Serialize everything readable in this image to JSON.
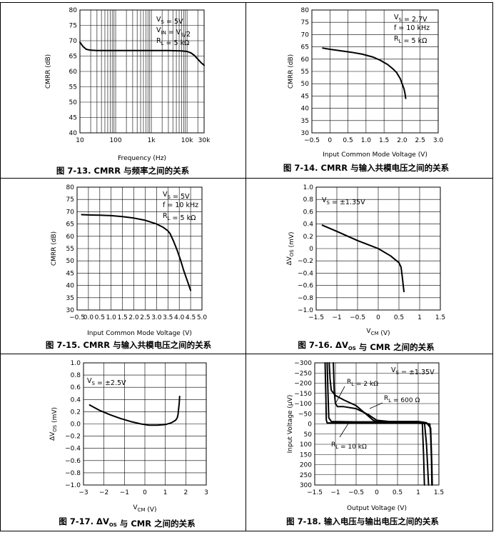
{
  "chart_data": [
    {
      "type": "line",
      "title": "图 7-13. CMRR 与频率之间的关系",
      "xlabel": "Frequency (Hz)",
      "ylabel": "CMRR (dB)",
      "xscale": "log",
      "xlim": [
        10,
        30000
      ],
      "ylim": [
        40,
        80
      ],
      "xticks": [
        10,
        100,
        1000,
        10000,
        30000
      ],
      "xtick_labels": [
        "10",
        "100",
        "1k",
        "10k",
        "30k"
      ],
      "yticks": [
        40,
        45,
        50,
        55,
        60,
        65,
        70,
        75,
        80
      ],
      "ytick_labels": [
        "40",
        "45",
        "50",
        "55",
        "60",
        "65",
        "70",
        "75",
        "80"
      ],
      "legend": [
        "V_S = 5V",
        "V_IN = V_S/2",
        "R_L = 5 kΩ"
      ],
      "legend_position": "top-right",
      "series": [
        {
          "name": "CMRR",
          "x": [
            10,
            12,
            15,
            20,
            30,
            50,
            100,
            300,
            1000,
            3000,
            7000,
            10000,
            13000,
            16000,
            20000,
            25000,
            30000
          ],
          "y": [
            69.5,
            68.2,
            67.2,
            66.9,
            66.8,
            66.8,
            66.8,
            66.8,
            66.8,
            66.8,
            66.7,
            66.5,
            66.0,
            65.2,
            64.0,
            62.8,
            62.0
          ]
        }
      ]
    },
    {
      "type": "line",
      "title": "图 7-14. CMRR 与输入共模电压之间的关系",
      "xlabel": "Input Common Mode Voltage (V)",
      "ylabel": "CMRR (dB)",
      "xlim": [
        -0.5,
        3.0
      ],
      "ylim": [
        30,
        80
      ],
      "xticks": [
        -0.5,
        0,
        0.5,
        1.0,
        1.5,
        2.0,
        2.5,
        3.0
      ],
      "xtick_labels": [
        "−0.5",
        "0",
        "0.5",
        "1.0",
        "1.5",
        "2.0",
        "2.5",
        "3.0"
      ],
      "yticks": [
        30,
        35,
        40,
        45,
        50,
        55,
        60,
        65,
        70,
        75,
        80
      ],
      "ytick_labels": [
        "30",
        "35",
        "40",
        "45",
        "50",
        "55",
        "60",
        "65",
        "70",
        "75",
        "80"
      ],
      "legend": [
        "V_S = 2.7V",
        "f = 10 kHz",
        "R_L = 5 kΩ"
      ],
      "legend_position": "top-right",
      "series": [
        {
          "name": "CMRR",
          "x": [
            -0.2,
            0,
            0.3,
            0.6,
            0.9,
            1.2,
            1.4,
            1.6,
            1.75,
            1.85,
            1.95,
            2.0,
            2.05,
            2.08,
            2.1
          ],
          "y": [
            64.5,
            64.0,
            63.4,
            62.8,
            62.0,
            60.8,
            59.5,
            57.8,
            56.0,
            54.5,
            52.0,
            50.0,
            48.0,
            46.0,
            44.0
          ]
        }
      ]
    },
    {
      "type": "line",
      "title": "图 7-15. CMRR 与输入共模电压之间的关系",
      "xlabel": "Input Common Mode Voltage (V)",
      "ylabel": "CMRR (dB)",
      "xlim": [
        -0.5,
        5.0
      ],
      "ylim": [
        30,
        80
      ],
      "xticks": [
        -0.5,
        0,
        0.5,
        1.0,
        1.5,
        2.0,
        2.5,
        3.0,
        3.5,
        4.0,
        4.5,
        5.0
      ],
      "xtick_labels": [
        "−0.5",
        "0.0",
        "0.5",
        "1.0",
        "1.5",
        "2.0",
        "2.5",
        "3.0",
        "3.5",
        "4.0",
        "4.5",
        "5.0"
      ],
      "yticks": [
        30,
        35,
        40,
        45,
        50,
        55,
        60,
        65,
        70,
        75,
        80
      ],
      "ytick_labels": [
        "30",
        "35",
        "40",
        "45",
        "50",
        "55",
        "60",
        "65",
        "70",
        "75",
        "80"
      ],
      "legend": [
        "V_S = 5V",
        "f = 10 kHz",
        "R_L = 5 kΩ"
      ],
      "legend_position": "top-right",
      "series": [
        {
          "name": "CMRR",
          "x": [
            -0.3,
            0,
            0.5,
            1.0,
            1.5,
            2.0,
            2.5,
            3.0,
            3.3,
            3.5,
            3.6,
            3.75,
            3.9,
            4.05,
            4.2,
            4.35,
            4.5
          ],
          "y": [
            68.8,
            68.7,
            68.6,
            68.4,
            68.0,
            67.4,
            66.5,
            65.0,
            63.6,
            62.2,
            61.0,
            58.0,
            54.5,
            50.5,
            46.0,
            42.0,
            38.0
          ]
        }
      ]
    },
    {
      "type": "line",
      "title": "图 7-16. ΔV_OS 与 CMR 之间的关系",
      "xlabel": "V_CM (V)",
      "ylabel": "ΔV_OS (mV)",
      "xlim": [
        -1.5,
        1.5
      ],
      "ylim": [
        -1.0,
        1.0
      ],
      "xticks": [
        -1.5,
        -1,
        -0.5,
        0,
        0.5,
        1,
        1.5
      ],
      "xtick_labels": [
        "−1.5",
        "−1",
        "−0.5",
        "0",
        "0.5",
        "1",
        "1.5"
      ],
      "yticks": [
        -1.0,
        -0.8,
        -0.6,
        -0.4,
        -0.2,
        0,
        0.2,
        0.4,
        0.6,
        0.8,
        1.0
      ],
      "ytick_labels": [
        "−1.0",
        "−0.8",
        "−0.6",
        "−0.4",
        "−0.2",
        "0",
        "0.2",
        "0.4",
        "0.6",
        "0.8",
        "1.0"
      ],
      "legend": [
        "V_S = ±1.35V"
      ],
      "legend_position": "top-left",
      "series": [
        {
          "name": "ΔVOS",
          "x": [
            -1.35,
            -1.0,
            -0.5,
            0,
            0.3,
            0.5,
            0.55,
            0.58,
            0.6,
            0.62
          ],
          "y": [
            0.38,
            0.28,
            0.13,
            0.0,
            -0.12,
            -0.23,
            -0.3,
            -0.45,
            -0.58,
            -0.7
          ]
        }
      ]
    },
    {
      "type": "line",
      "title": "图 7-17. ΔV_OS 与 CMR 之间的关系",
      "xlabel": "V_CM (V)",
      "ylabel": "ΔV_OS (mV)",
      "xlim": [
        -3,
        3
      ],
      "ylim": [
        -1.0,
        1.0
      ],
      "xticks": [
        -3,
        -2,
        -1,
        0,
        1,
        2,
        3
      ],
      "xtick_labels": [
        "−3",
        "−2",
        "−1",
        "0",
        "1",
        "2",
        "3"
      ],
      "yticks": [
        -1.0,
        -0.8,
        -0.6,
        -0.4,
        -0.2,
        0,
        0.2,
        0.4,
        0.6,
        0.8,
        1.0
      ],
      "ytick_labels": [
        "−1.0",
        "−0.8",
        "−0.6",
        "−0.4",
        "−0.2",
        "0.0",
        "0.2",
        "0.4",
        "0.6",
        "0.8",
        "1.0"
      ],
      "legend": [
        "V_S = ±2.5V"
      ],
      "legend_position": "top-left",
      "series": [
        {
          "name": "ΔVOS",
          "x": [
            -2.7,
            -2.2,
            -1.7,
            -1.2,
            -0.7,
            -0.2,
            0.2,
            0.6,
            1.0,
            1.3,
            1.5,
            1.58,
            1.62,
            1.65,
            1.68,
            1.7
          ],
          "y": [
            0.31,
            0.22,
            0.15,
            0.09,
            0.04,
            0.0,
            -0.02,
            -0.02,
            -0.01,
            0.02,
            0.06,
            0.1,
            0.15,
            0.25,
            0.35,
            0.45
          ]
        }
      ]
    },
    {
      "type": "line",
      "title": "图 7-18. 输入电压与输出电压之间的关系",
      "xlabel": "Output Voltage (V)",
      "ylabel": "Input Voltage (μV)",
      "xlim": [
        -1.5,
        1.5
      ],
      "ylim": [
        300,
        -300
      ],
      "xticks": [
        -1.5,
        -1,
        -0.5,
        0,
        0.5,
        1,
        1.5
      ],
      "xtick_labels": [
        "−1.5",
        "−1",
        "−0.5",
        "0",
        "0.5",
        "1",
        "1.5"
      ],
      "yticks": [
        -300,
        -250,
        -200,
        -150,
        -100,
        -50,
        0,
        50,
        100,
        150,
        200,
        250,
        300
      ],
      "ytick_labels": [
        "−300",
        "−250",
        "−200",
        "−150",
        "−100",
        "−50",
        "0",
        "50",
        "100",
        "150",
        "200",
        "250",
        "300"
      ],
      "legend": [
        "V_S = ±1.35V"
      ],
      "legend_position": "top-right",
      "annotations": [
        "R_L = 2 kΩ",
        "R_L = 600 Ω",
        "R_L = 10 kΩ"
      ],
      "series": [
        {
          "name": "R_L = 2 kΩ",
          "x": [
            -1.15,
            -1.13,
            -1.1,
            -1.0,
            -0.8,
            -0.5,
            -0.3,
            -0.1,
            0,
            0.3,
            0.8,
            1.05,
            1.1,
            1.13,
            1.15
          ],
          "y": [
            -300,
            -220,
            -165,
            -140,
            -118,
            -90,
            -55,
            -20,
            -10,
            -10,
            -10,
            -10,
            0,
            150,
            300
          ]
        },
        {
          "name": "R_L = 600 Ω",
          "x": [
            -1.05,
            -1.03,
            -1.0,
            -0.95,
            -0.8,
            -0.5,
            -0.2,
            0,
            0.3,
            0.7,
            1.0,
            1.15,
            1.2,
            1.25
          ],
          "y": [
            -300,
            -160,
            -100,
            -85,
            -85,
            -75,
            -45,
            -18,
            -12,
            -12,
            -12,
            -8,
            100,
            300
          ]
        },
        {
          "name": "R_L = 10 kΩ",
          "x": [
            -1.25,
            -1.23,
            -1.22,
            -1.2,
            -1.0,
            0,
            1.0,
            1.28,
            1.3,
            1.32,
            1.33
          ],
          "y": [
            -300,
            -120,
            -20,
            -5,
            -5,
            -5,
            -5,
            0,
            50,
            180,
            300
          ]
        },
        {
          "name": "R_L = 10 kΩ (b)",
          "x": [
            -1.2,
            -1.18,
            -1.16,
            -1.1,
            -0.5,
            0,
            0.5,
            1.2,
            1.3,
            1.33,
            1.34
          ],
          "y": [
            -300,
            -150,
            -30,
            -12,
            -10,
            -10,
            -8,
            -6,
            20,
            200,
            300
          ]
        }
      ]
    }
  ]
}
